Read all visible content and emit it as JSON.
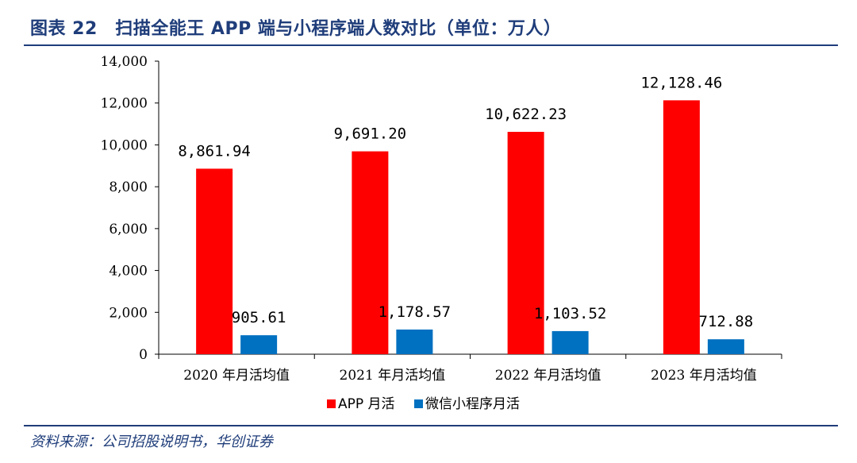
{
  "title": "图表 22　扫描全能王 APP 端与小程序端人数对比（单位：万人）",
  "source": "资料来源：公司招股说明书，华创证券",
  "colors": {
    "title": "#1f3d7a",
    "app": "#ff0000",
    "mini": "#0070c0"
  },
  "chart_data": {
    "type": "bar",
    "categories": [
      "2020 年月活均值",
      "2021 年月活均值",
      "2022 年月活均值",
      "2023 年月活均值"
    ],
    "series": [
      {
        "name": "APP 月活",
        "values": [
          8861.94,
          9691.2,
          10622.23,
          12128.46
        ],
        "labels": [
          "8,861.94",
          "9,691.20",
          "10,622.23",
          "12,128.46"
        ]
      },
      {
        "name": "微信小程序月活",
        "values": [
          905.61,
          1178.57,
          1103.52,
          712.88
        ],
        "labels": [
          "905.61",
          "1,178.57",
          "1,103.52",
          "712.88"
        ]
      }
    ],
    "yticks": [
      "0",
      "2,000",
      "4,000",
      "6,000",
      "8,000",
      "10,000",
      "12,000",
      "14,000"
    ],
    "ylim": [
      0,
      14000
    ],
    "grid": false,
    "legend": "bottom"
  }
}
